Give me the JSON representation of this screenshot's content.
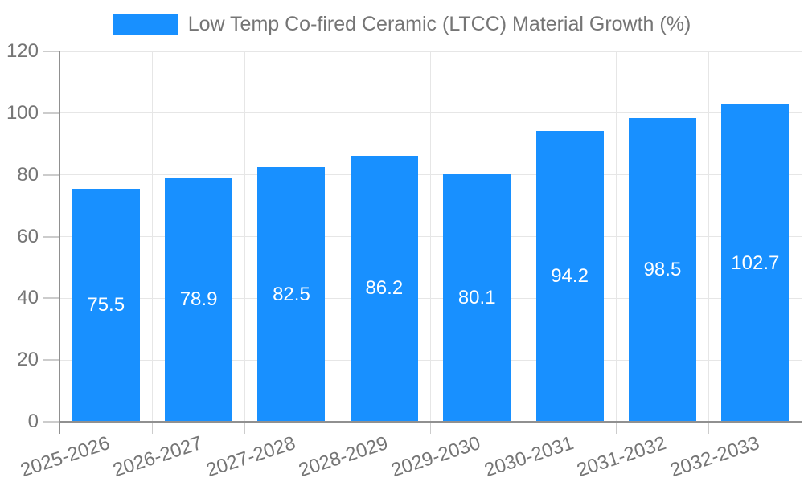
{
  "chart_data": {
    "type": "bar",
    "title": "Low Temp Co-fired Ceramic (LTCC) Material Growth (%)",
    "legend": {
      "position": "top",
      "entries": [
        {
          "label": "Low Temp Co-fired Ceramic (LTCC) Material Growth (%)",
          "color": "#1890FF"
        }
      ]
    },
    "categories": [
      "2025-2026",
      "2026-2027",
      "2027-2028",
      "2028-2029",
      "2029-2030",
      "2030-2031",
      "2031-2032",
      "2032-2033"
    ],
    "series": [
      {
        "name": "Low Temp Co-fired Ceramic (LTCC) Material Growth (%)",
        "values": [
          75.5,
          78.9,
          82.5,
          86.2,
          80.1,
          94.2,
          98.5,
          102.7
        ]
      }
    ],
    "value_labels": [
      "75.5",
      "78.9",
      "82.5",
      "86.2",
      "80.1",
      "94.2",
      "98.5",
      "102.7"
    ],
    "xlabel": "",
    "ylabel": "",
    "ylim": [
      0,
      120
    ],
    "yticks": [
      0,
      20,
      40,
      60,
      80,
      100,
      120
    ],
    "ytick_step": 20,
    "grid": true,
    "x_label_rotation_deg": -18,
    "colors": {
      "background": "#FFFFFF",
      "bar": "#1890FF",
      "value_label": "#FFFFFF",
      "axis_text": "#757575",
      "legend_text": "#757575",
      "gridline": "#E6E6E6",
      "axis_line": "#909090",
      "tick": "#CCCCCC"
    }
  }
}
